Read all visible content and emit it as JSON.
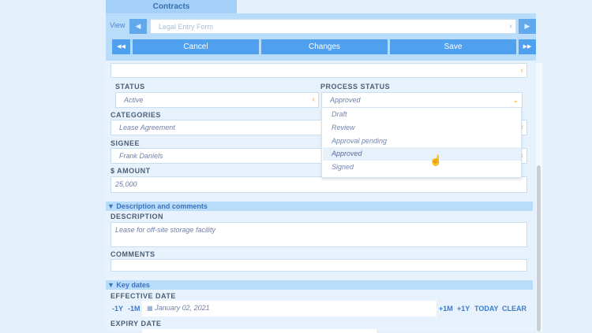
{
  "tab": {
    "label": "Contracts"
  },
  "toolbar": {
    "view_label": "View",
    "view_value": "Legal Entry Form",
    "first": "◀◀",
    "prev": "◀",
    "next": "▶",
    "last": "▶▶",
    "cancel": "Cancel",
    "changes": "Changes",
    "save": "Save"
  },
  "form": {
    "status_label": "STATUS",
    "status_value": "Active",
    "process_label": "PROCESS STATUS",
    "process_value": "Approved",
    "process_options": [
      "Draft",
      "Review",
      "Approval pending",
      "Approved",
      "Signed"
    ],
    "categories_label": "CATEGORIES",
    "categories_value": "Lease Agreement",
    "signee_label": "SIGNEE",
    "signee_value": "Frank Daniels",
    "amount_label": "$ AMOUNT",
    "amount_value": "25,000"
  },
  "desc_section": {
    "title": "▼ Description and comments",
    "description_label": "DESCRIPTION",
    "description_value": "Lease for off-site storage facility",
    "comments_label": "COMMENTS",
    "comments_value": ""
  },
  "dates_section": {
    "title": "▼ Key dates",
    "effective_label": "EFFECTIVE DATE",
    "effective_value": "January 02, 2021",
    "minus_year": "-1Y",
    "minus_month": "-1M",
    "plus_month": "+1M",
    "plus_year": "+1Y",
    "today": "TODAY",
    "clear": "CLEAR",
    "expiry_label": "EXPIRY DATE"
  },
  "colors": {
    "accent": "#4fa0ee",
    "chevron": "#e8a800"
  }
}
